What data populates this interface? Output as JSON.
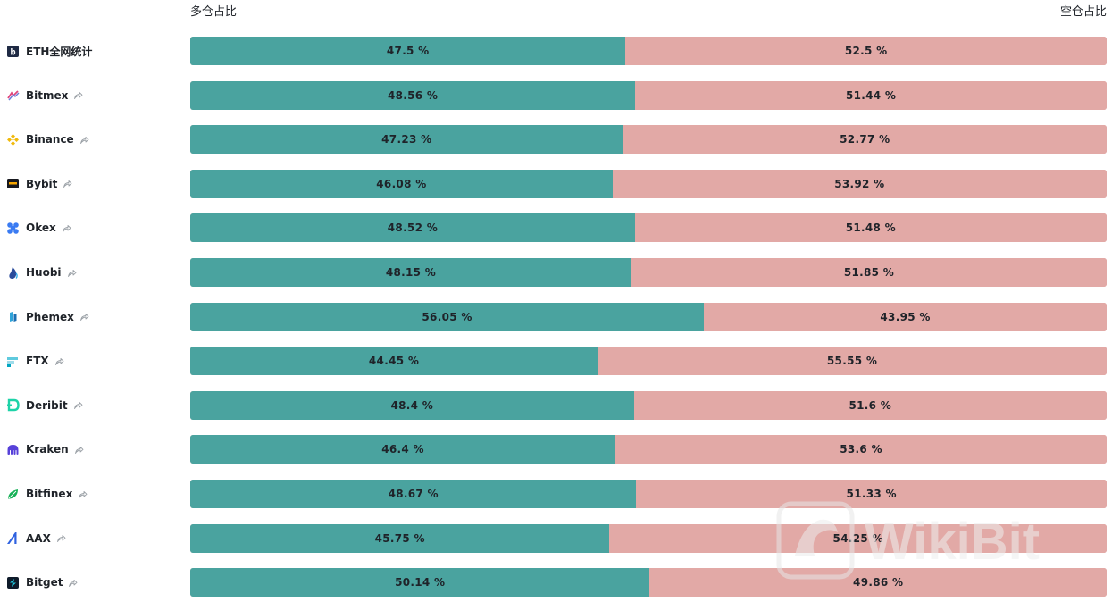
{
  "headers": {
    "long_label": "多仓占比",
    "short_label": "空仓占比"
  },
  "colors": {
    "long": "#4aa39f",
    "short": "#e2a9a6"
  },
  "watermark": "WikiBit",
  "chart_data": {
    "type": "bar",
    "orientation": "horizontal-stacked-percent",
    "categories": [
      "ETH全网统计",
      "Bitmex",
      "Binance",
      "Bybit",
      "Okex",
      "Huobi",
      "Phemex",
      "FTX",
      "Deribit",
      "Kraken",
      "Bitfinex",
      "AAX",
      "Bitget"
    ],
    "series": [
      {
        "name": "多仓占比",
        "values": [
          47.5,
          48.56,
          47.23,
          46.08,
          48.52,
          48.15,
          56.05,
          44.45,
          48.4,
          46.4,
          48.67,
          45.75,
          50.14
        ],
        "labels": [
          "47.5 %",
          "48.56 %",
          "47.23 %",
          "46.08 %",
          "48.52 %",
          "48.15 %",
          "56.05 %",
          "44.45 %",
          "48.4 %",
          "46.4 %",
          "48.67 %",
          "45.75 %",
          "50.14 %"
        ]
      },
      {
        "name": "空仓占比",
        "values": [
          52.5,
          51.44,
          52.77,
          53.92,
          51.48,
          51.85,
          43.95,
          55.55,
          51.6,
          53.6,
          51.33,
          54.25,
          49.86
        ],
        "labels": [
          "52.5 %",
          "51.44 %",
          "52.77 %",
          "53.92 %",
          "51.48 %",
          "51.85 %",
          "43.95 %",
          "55.55 %",
          "51.6 %",
          "53.6 %",
          "51.33 %",
          "54.25 %",
          "49.86 %"
        ]
      }
    ],
    "xlim": [
      0,
      100
    ],
    "icons": [
      "bitcoin-b-icon",
      "bitmex-icon",
      "binance-icon",
      "bybit-icon",
      "okex-icon",
      "huobi-icon",
      "phemex-icon",
      "ftx-icon",
      "deribit-icon",
      "kraken-icon",
      "bitfinex-icon",
      "aax-icon",
      "bitget-icon"
    ],
    "share_icon": "share-arrow-icon"
  }
}
